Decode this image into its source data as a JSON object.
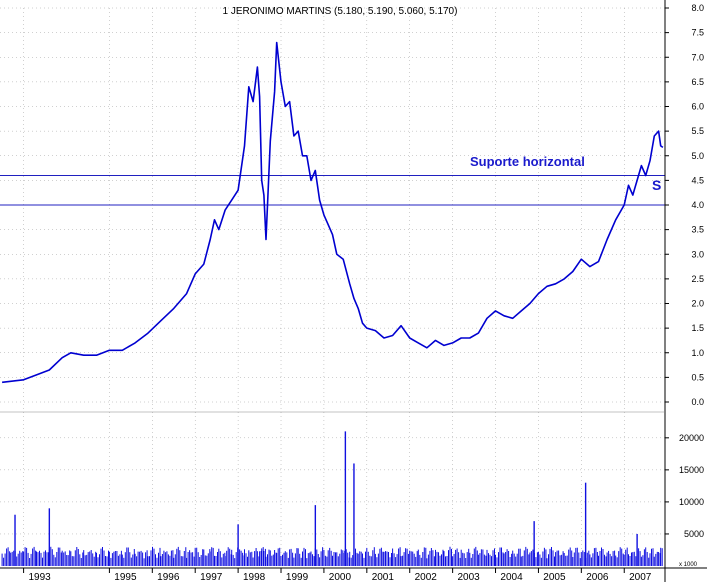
{
  "chart_data": {
    "type": "line",
    "title": "1 JERONIMO MARTINS (5.180, 5.190, 5.060, 5.170)",
    "annotation": "Suporte horizontal",
    "annotation_marker": "S",
    "price_axis": {
      "ylim": [
        0.0,
        8.0
      ],
      "ticks": [
        "0.0",
        "0.5",
        "1.0",
        "1.5",
        "2.0",
        "2.5",
        "3.0",
        "3.5",
        "4.0",
        "4.5",
        "5.0",
        "5.5",
        "6.0",
        "6.5",
        "7.0",
        "7.5",
        "8.0"
      ]
    },
    "volume_axis": {
      "ylim": [
        0,
        22000
      ],
      "ticks": [
        "5000",
        "10000",
        "15000",
        "20000"
      ],
      "unit_label": "x 1000"
    },
    "x_ticks": [
      "1993",
      "1995",
      "1996",
      "1997",
      "1998",
      "1999",
      "2000",
      "2001",
      "2002",
      "2003",
      "2004",
      "2005",
      "2006",
      "2007"
    ],
    "support_levels": [
      4.6,
      4.0
    ],
    "colors": {
      "price": "#0000d0",
      "volume": "#1010e0",
      "grid": "#a0a0a0",
      "support": "#2020c0",
      "text": "#0000cc"
    },
    "series": [
      {
        "x": [
          1992.5,
          1992.7,
          1993.0,
          1993.3,
          1993.6,
          1993.9,
          1994.1,
          1994.4,
          1994.7,
          1995.0,
          1995.3,
          1995.6,
          1995.9,
          1996.2,
          1996.5,
          1996.8,
          1997.0,
          1997.2,
          1997.35,
          1997.45,
          1997.55,
          1997.7,
          1997.85,
          1998.0,
          1998.15,
          1998.25,
          1998.35,
          1998.45,
          1998.5,
          1998.55,
          1998.6,
          1998.65,
          1998.75,
          1998.85,
          1998.9,
          1999.0,
          1999.1,
          1999.2,
          1999.3,
          1999.4,
          1999.5,
          1999.6,
          1999.7,
          1999.8,
          1999.9,
          2000.0,
          2000.1,
          2000.2,
          2000.3,
          2000.45,
          2000.6,
          2000.7,
          2000.8,
          2000.9,
          2001.0,
          2001.2,
          2001.4,
          2001.6,
          2001.8,
          2002.0,
          2002.2,
          2002.4,
          2002.6,
          2002.8,
          2003.0,
          2003.2,
          2003.4,
          2003.6,
          2003.8,
          2004.0,
          2004.2,
          2004.4,
          2004.6,
          2004.8,
          2005.0,
          2005.2,
          2005.4,
          2005.6,
          2005.8,
          2006.0,
          2006.2,
          2006.4,
          2006.6,
          2006.8,
          2007.0,
          2007.1,
          2007.2,
          2007.3,
          2007.4,
          2007.5,
          2007.6,
          2007.7,
          2007.8,
          2007.85,
          2007.9
        ],
        "values": [
          0.4,
          0.42,
          0.45,
          0.55,
          0.65,
          0.9,
          1.0,
          0.95,
          0.95,
          1.05,
          1.05,
          1.2,
          1.4,
          1.65,
          1.9,
          2.2,
          2.6,
          2.8,
          3.3,
          3.7,
          3.5,
          3.9,
          4.1,
          4.3,
          5.2,
          6.4,
          6.1,
          6.8,
          6.2,
          4.5,
          4.2,
          3.3,
          5.3,
          6.3,
          7.3,
          6.5,
          6.0,
          6.1,
          5.4,
          5.5,
          5.0,
          5.0,
          4.5,
          4.7,
          4.1,
          3.8,
          3.6,
          3.4,
          3.0,
          2.9,
          2.4,
          2.1,
          1.9,
          1.6,
          1.5,
          1.45,
          1.3,
          1.35,
          1.55,
          1.3,
          1.2,
          1.1,
          1.25,
          1.15,
          1.2,
          1.3,
          1.3,
          1.4,
          1.7,
          1.85,
          1.75,
          1.7,
          1.85,
          2.0,
          2.2,
          2.35,
          2.4,
          2.5,
          2.65,
          2.9,
          2.75,
          2.85,
          3.3,
          3.7,
          4.0,
          4.4,
          4.2,
          4.5,
          4.8,
          4.6,
          4.9,
          5.4,
          5.5,
          5.2,
          5.17
        ]
      }
    ],
    "volume_peaks": [
      {
        "x": 1992.8,
        "value": 8000
      },
      {
        "x": 1993.6,
        "value": 9000
      },
      {
        "x": 1998.0,
        "value": 6500
      },
      {
        "x": 1999.8,
        "value": 9500
      },
      {
        "x": 2000.5,
        "value": 21000
      },
      {
        "x": 2000.7,
        "value": 16000
      },
      {
        "x": 2004.9,
        "value": 7000
      },
      {
        "x": 2006.1,
        "value": 13000
      },
      {
        "x": 2007.3,
        "value": 5000
      }
    ]
  }
}
